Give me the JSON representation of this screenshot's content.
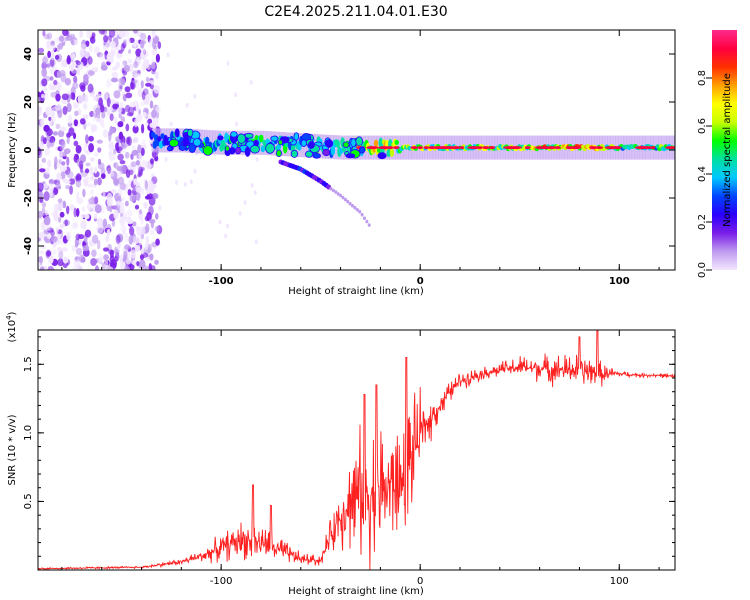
{
  "figure": {
    "title": "C2E4.2025.211.04.01.E30"
  },
  "chart_data": [
    {
      "type": "heatmap",
      "title": "C2E4.2025.211.04.01.E30",
      "xlabel": "Height of straight line (km)",
      "ylabel": "Frequency (Hz)",
      "xlim": [
        -192,
        128
      ],
      "ylim": [
        -50,
        50
      ],
      "xticks": [
        -100,
        0,
        100
      ],
      "yticks": [
        -40,
        -20,
        0,
        20,
        40
      ],
      "colorbar": {
        "label": "Normalized spectral amplitude",
        "range": [
          0.0,
          1.0
        ],
        "ticks": [
          0.0,
          0.2,
          0.4,
          0.6,
          0.8
        ],
        "colors": [
          "#f2e6ff",
          "#c09cf0",
          "#7a1ee8",
          "#2a00ff",
          "#0044ff",
          "#00c8ff",
          "#00e0a0",
          "#00ff00",
          "#c8ff00",
          "#ffff00",
          "#ffa000",
          "#ff3000",
          "#ff0040",
          "#ff2a8a"
        ]
      },
      "noise_region_x": [
        -192,
        -131
      ],
      "main_line": {
        "x": [
          -135,
          -120,
          -100,
          -80,
          -60,
          -40,
          -20,
          0,
          20,
          40,
          60,
          80,
          100,
          128
        ],
        "y": [
          4,
          4,
          3,
          3,
          2,
          1,
          1,
          1,
          1,
          1,
          1,
          1,
          1,
          1
        ],
        "peak": [
          0.35,
          0.45,
          0.5,
          0.5,
          0.45,
          0.5,
          0.7,
          0.65,
          0.6,
          0.6,
          0.75,
          0.8,
          0.55,
          0.55
        ]
      },
      "lower_branch": {
        "x": [
          -70,
          -60,
          -50,
          -40,
          -30,
          -25
        ],
        "y": [
          -5,
          -8,
          -13,
          -19,
          -26,
          -32
        ]
      }
    },
    {
      "type": "line",
      "xlabel": "Height of straight line (km)",
      "ylabel": "SNR (10 * v/v)",
      "y_multiplier_label": "(x10",
      "y_multiplier_exp": "4",
      "y_multiplier_close": ")",
      "xlim": [
        -192,
        128
      ],
      "ylim": [
        0.0,
        1.75
      ],
      "xticks": [
        -100,
        0,
        100
      ],
      "yticks": [
        0.5,
        1.0,
        1.5
      ],
      "color": "#ff2020",
      "envelope": {
        "x": [
          -192,
          -140,
          -130,
          -120,
          -110,
          -100,
          -90,
          -80,
          -70,
          -60,
          -50,
          -45,
          -40,
          -35,
          -30,
          -25,
          -20,
          -15,
          -10,
          -5,
          0,
          5,
          10,
          15,
          20,
          30,
          40,
          50,
          60,
          70,
          80,
          90,
          100,
          110,
          120,
          128
        ],
        "base": [
          0.01,
          0.02,
          0.04,
          0.06,
          0.1,
          0.16,
          0.22,
          0.2,
          0.14,
          0.08,
          0.07,
          0.25,
          0.4,
          0.5,
          0.55,
          0.55,
          0.6,
          0.6,
          0.62,
          0.8,
          1.0,
          1.1,
          1.2,
          1.3,
          1.38,
          1.43,
          1.46,
          1.48,
          1.47,
          1.46,
          1.46,
          1.43,
          1.43,
          1.42,
          1.42,
          1.41
        ],
        "spread": [
          0.01,
          0.01,
          0.02,
          0.03,
          0.06,
          0.12,
          0.18,
          0.16,
          0.12,
          0.06,
          0.05,
          0.15,
          0.3,
          0.45,
          0.6,
          0.6,
          0.6,
          0.55,
          0.55,
          0.5,
          0.35,
          0.2,
          0.12,
          0.1,
          0.08,
          0.06,
          0.07,
          0.1,
          0.12,
          0.14,
          0.15,
          0.12,
          0.03,
          0.02,
          0.02,
          0.02
        ]
      },
      "peaks": [
        {
          "x": -84,
          "y": 0.62
        },
        {
          "x": -75,
          "y": 0.47
        },
        {
          "x": -28,
          "y": 1.28
        },
        {
          "x": -22,
          "y": 1.35
        },
        {
          "x": -7,
          "y": 1.55
        },
        {
          "x": 80,
          "y": 1.7
        },
        {
          "x": 89,
          "y": 1.75
        }
      ]
    }
  ]
}
